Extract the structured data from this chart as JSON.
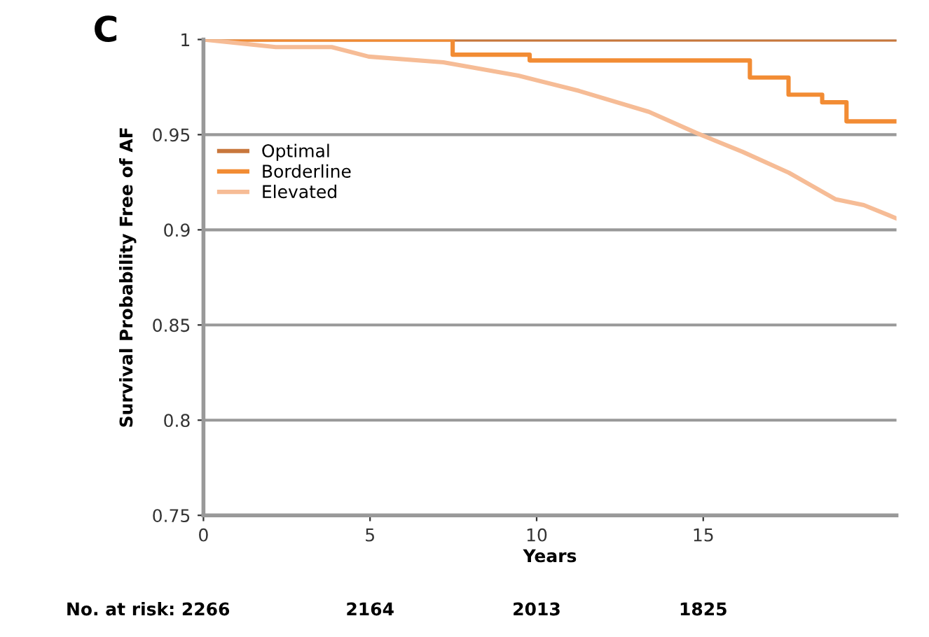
{
  "chart_data": {
    "type": "line",
    "title": "C",
    "xlabel": "Years",
    "ylabel": "Survival Probability Free of AF",
    "xlim": [
      0,
      20.8
    ],
    "xticks": [
      0,
      5,
      10,
      15
    ],
    "ylim": [
      0.75,
      1
    ],
    "yticks": [
      0.75,
      0.8,
      0.85,
      0.9,
      0.95,
      1
    ],
    "grid": "y",
    "legend": "left",
    "annotations": [
      "No. at risk: 2266",
      "2164",
      "2013",
      "1825"
    ],
    "series": [
      {
        "name": "Optimal",
        "type": "step",
        "color": "#c8773c",
        "x": [
          0,
          20.8
        ],
        "values": [
          1,
          1
        ]
      },
      {
        "name": "Borderline",
        "type": "step",
        "color": "#f28c34",
        "x": [
          0,
          7.48,
          9.79,
          16.4,
          17.56,
          18.57,
          19.3,
          20.8
        ],
        "values": [
          1,
          0.992,
          0.989,
          0.98,
          0.971,
          0.967,
          0.957,
          0.957
        ]
      },
      {
        "name": "Elevated",
        "color": "#f6bc96",
        "x": [
          0,
          2.17,
          3.85,
          4.96,
          7.2,
          9.45,
          11.27,
          13.37,
          14.78,
          16.18,
          17.57,
          18.98,
          19.82,
          20.8
        ],
        "values": [
          1,
          0.996,
          0.996,
          0.991,
          0.988,
          0.981,
          0.973,
          0.962,
          0.951,
          0.941,
          0.93,
          0.916,
          0.913,
          0.906
        ]
      }
    ]
  }
}
